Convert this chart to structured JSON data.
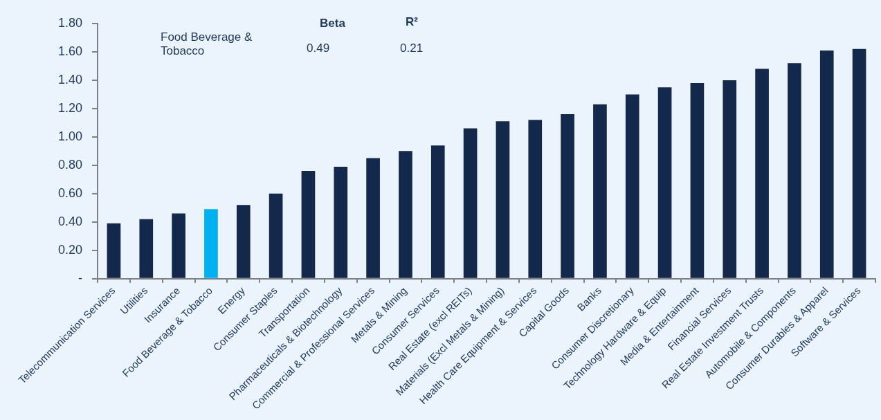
{
  "chart_data": {
    "type": "bar",
    "categories": [
      "Telecommunication Services",
      "Utilities",
      "Insurance",
      "Food Beverage & Tobacco",
      "Energy",
      "Consumer Staples",
      "Transportation",
      "Pharmaceuticals & Biotechnology",
      "Commercial & Professional Services",
      "Metals & Mining",
      "Consumer Services",
      "Real Estate (excl REITs)",
      "Materials (Excl Metals & Mining)",
      "Health Care Equipment & Services",
      "Capital Goods",
      "Banks",
      "Consumer Discretionary",
      "Technology Hardware & Equip",
      "Media & Entertainment",
      "Financial Services",
      "Real Estate Investment Trusts",
      "Automobile & Components",
      "Consumer Durables & Apparel",
      "Software & Services"
    ],
    "values": [
      0.39,
      0.42,
      0.46,
      0.49,
      0.52,
      0.6,
      0.76,
      0.79,
      0.85,
      0.9,
      0.94,
      1.06,
      1.11,
      1.12,
      1.16,
      1.23,
      1.3,
      1.35,
      1.38,
      1.4,
      1.48,
      1.52,
      1.61,
      1.62
    ],
    "colors": [
      "#13294b",
      "#13294b",
      "#13294b",
      "#00b0f0",
      "#13294b",
      "#13294b",
      "#13294b",
      "#13294b",
      "#13294b",
      "#13294b",
      "#13294b",
      "#13294b",
      "#13294b",
      "#13294b",
      "#13294b",
      "#13294b",
      "#13294b",
      "#13294b",
      "#13294b",
      "#13294b",
      "#13294b",
      "#13294b",
      "#13294b",
      "#13294b"
    ],
    "ylim": [
      0,
      1.8
    ],
    "yticks": [
      {
        "value": 0,
        "label": "-"
      },
      {
        "value": 0.2,
        "label": "0.20"
      },
      {
        "value": 0.4,
        "label": "0.40"
      },
      {
        "value": 0.6,
        "label": "0.60"
      },
      {
        "value": 0.8,
        "label": "0.80"
      },
      {
        "value": 1,
        "label": "1.00"
      },
      {
        "value": 1.2,
        "label": "1.20"
      },
      {
        "value": 1.4,
        "label": "1.40"
      },
      {
        "value": 1.6,
        "label": "1.60"
      },
      {
        "value": 1.8,
        "label": "1.80"
      }
    ],
    "annotations": [
      "Food Beverage & Tobacco",
      "Beta",
      "0.49",
      "R²",
      "0.21"
    ],
    "grid": false,
    "legend": false
  }
}
